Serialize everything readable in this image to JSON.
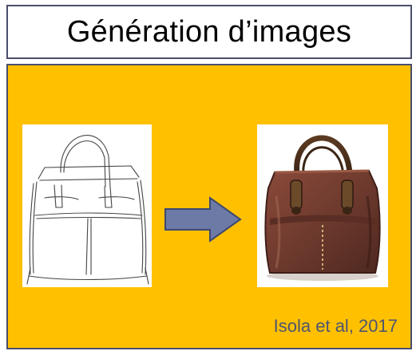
{
  "slide": {
    "title": "Génération d’images",
    "citation": "Isola et al, 2017"
  },
  "colors": {
    "panel_background": "#ffc000",
    "border": "#4a4e6b",
    "arrow_fill": "#6d7aa5",
    "citation_text": "#4d5570"
  },
  "icons": {
    "input": "handbag-sketch-edges",
    "transform": "right-arrow",
    "output": "handbag-photo-leather"
  }
}
